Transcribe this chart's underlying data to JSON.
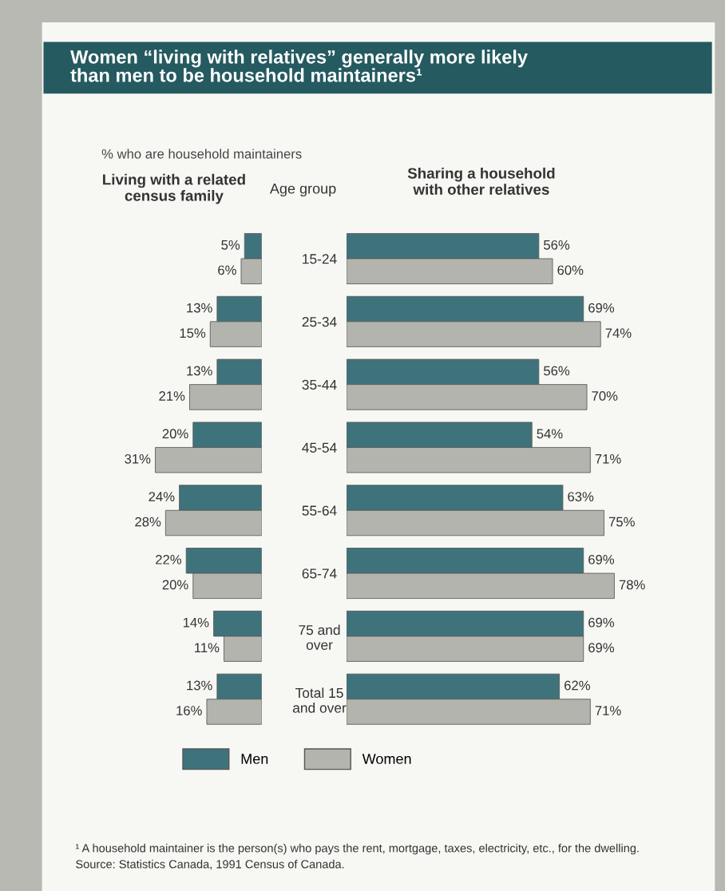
{
  "chart_data": [
    {
      "type": "bar",
      "orientation": "horizontal",
      "title": "Women “living with relatives” generally more likely than men to be household maintainers¹",
      "subtitle": "% who are household maintainers",
      "xlabel": "Living with a related census family",
      "ylabel": "Age group",
      "categories": [
        "15-24",
        "25-34",
        "35-44",
        "45-54",
        "55-64",
        "65-74",
        "75 and over",
        "Total 15 and over"
      ],
      "tick_labels": "y",
      "series": [
        {
          "color": "#3f737c",
          "values": [
            5,
            13,
            13,
            20,
            24,
            22,
            14,
            13
          ],
          "value_labels": [
            "5%",
            "13%",
            "13%",
            "20%",
            "24%",
            "22%",
            "14%",
            "13%"
          ]
        },
        {
          "color": "#b4b4ae",
          "values": [
            6,
            15,
            21,
            31,
            28,
            20,
            11,
            16
          ],
          "value_labels": [
            "6%",
            "15%",
            "21%",
            "31%",
            "28%",
            "20%",
            "11%",
            "16%"
          ]
        }
      ]
    },
    {
      "type": "bar",
      "orientation": "horizontal",
      "title": "Sharing a household with other relatives",
      "categories": [
        null,
        null,
        null,
        null,
        null,
        null,
        null,
        null
      ],
      "legend": "bottom",
      "annotations": [
        "¹ A household maintainer is the person(s) who pays the rent, mortgage, taxes, electricity, etc., for the dwelling.",
        "Source: Statistics Canada, 1991 Census of Canada."
      ],
      "series": [
        {
          "name": "Men",
          "color": "#3f737c",
          "values": [
            56,
            69,
            56,
            54,
            63,
            69,
            69,
            62
          ],
          "value_labels": [
            "56%",
            "69%",
            "56%",
            "54%",
            "63%",
            "69%",
            "69%",
            "62%"
          ]
        },
        {
          "name": "Women",
          "color": "#b4b4ae",
          "values": [
            60,
            74,
            70,
            71,
            75,
            78,
            69,
            71
          ],
          "value_labels": [
            "60%",
            "74%",
            "70%",
            "71%",
            "75%",
            "78%",
            "69%",
            "71%"
          ]
        }
      ]
    }
  ]
}
